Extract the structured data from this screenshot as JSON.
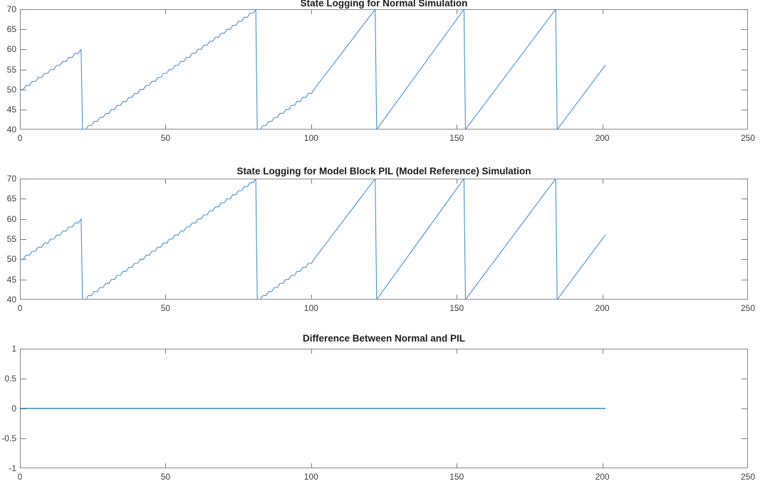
{
  "figure": {
    "background": "#ffffff",
    "axis_color": "#8a8a8a",
    "tick_color": "#7c7c7c",
    "tick_label_color": "#3c3c3c",
    "title_color": "#1c1c1c"
  },
  "chart_data": [
    {
      "type": "line",
      "title": "State Logging for Normal Simulation",
      "xlabel": "",
      "ylabel": "",
      "xlim": [
        0,
        250
      ],
      "ylim": [
        40,
        70
      ],
      "xticks": [
        0,
        50,
        100,
        150,
        200,
        250
      ],
      "xtick_labels": [
        "0",
        "50",
        "100",
        "150",
        "200",
        "250"
      ],
      "yticks": [
        40,
        45,
        50,
        55,
        60,
        65,
        70
      ],
      "ytick_labels": [
        "40",
        "45",
        "50",
        "55",
        "60",
        "65",
        "70"
      ],
      "grid": false,
      "legend": null,
      "box": true,
      "line_color": "#4a90d0",
      "line_width": 1.1,
      "series": [
        {
          "name": "state",
          "description": "sawtooth counter: stepped rise (+1 every ~2 s) early, smooth slope-1 rise later, wrapping from peak down to 40",
          "segments": [
            {
              "mode": "stepped",
              "from": [
                0,
                50
              ],
              "to": [
                21,
                60
              ]
            },
            {
              "mode": "linear",
              "from": [
                21,
                60
              ],
              "to": [
                21.5,
                40
              ]
            },
            {
              "mode": "stepped",
              "from": [
                21.5,
                40
              ],
              "to": [
                81,
                70
              ]
            },
            {
              "mode": "linear",
              "from": [
                81,
                70
              ],
              "to": [
                81.5,
                40
              ]
            },
            {
              "mode": "stepped",
              "from": [
                81.5,
                40
              ],
              "to": [
                101,
                50
              ]
            },
            {
              "mode": "linear",
              "from": [
                101,
                50
              ],
              "to": [
                122,
                70
              ]
            },
            {
              "mode": "linear",
              "from": [
                122,
                70
              ],
              "to": [
                122.5,
                40
              ]
            },
            {
              "mode": "linear",
              "from": [
                122.5,
                40
              ],
              "to": [
                152.5,
                70
              ]
            },
            {
              "mode": "linear",
              "from": [
                152.5,
                70
              ],
              "to": [
                153,
                40
              ]
            },
            {
              "mode": "linear",
              "from": [
                153,
                40
              ],
              "to": [
                184,
                70
              ]
            },
            {
              "mode": "linear",
              "from": [
                184,
                70
              ],
              "to": [
                184.5,
                40
              ]
            },
            {
              "mode": "linear",
              "from": [
                184.5,
                40
              ],
              "to": [
                201,
                56
              ]
            }
          ]
        }
      ]
    },
    {
      "type": "line",
      "title": "State Logging for Model Block PIL (Model Reference) Simulation",
      "xlabel": "",
      "ylabel": "",
      "xlim": [
        0,
        250
      ],
      "ylim": [
        40,
        70
      ],
      "xticks": [
        0,
        50,
        100,
        150,
        200,
        250
      ],
      "xtick_labels": [
        "0",
        "50",
        "100",
        "150",
        "200",
        "250"
      ],
      "yticks": [
        40,
        45,
        50,
        55,
        60,
        65,
        70
      ],
      "ytick_labels": [
        "40",
        "45",
        "50",
        "55",
        "60",
        "65",
        "70"
      ],
      "grid": false,
      "legend": null,
      "box": true,
      "line_color": "#4a90d0",
      "line_width": 1.1,
      "series": [
        {
          "name": "state",
          "description": "identical sawtooth counter trace as the Normal simulation",
          "segments": [
            {
              "mode": "stepped",
              "from": [
                0,
                50
              ],
              "to": [
                21,
                60
              ]
            },
            {
              "mode": "linear",
              "from": [
                21,
                60
              ],
              "to": [
                21.5,
                40
              ]
            },
            {
              "mode": "stepped",
              "from": [
                21.5,
                40
              ],
              "to": [
                81,
                70
              ]
            },
            {
              "mode": "linear",
              "from": [
                81,
                70
              ],
              "to": [
                81.5,
                40
              ]
            },
            {
              "mode": "stepped",
              "from": [
                81.5,
                40
              ],
              "to": [
                101,
                50
              ]
            },
            {
              "mode": "linear",
              "from": [
                101,
                50
              ],
              "to": [
                122,
                70
              ]
            },
            {
              "mode": "linear",
              "from": [
                122,
                70
              ],
              "to": [
                122.5,
                40
              ]
            },
            {
              "mode": "linear",
              "from": [
                122.5,
                40
              ],
              "to": [
                152.5,
                70
              ]
            },
            {
              "mode": "linear",
              "from": [
                152.5,
                70
              ],
              "to": [
                153,
                40
              ]
            },
            {
              "mode": "linear",
              "from": [
                153,
                40
              ],
              "to": [
                184,
                70
              ]
            },
            {
              "mode": "linear",
              "from": [
                184,
                70
              ],
              "to": [
                184.5,
                40
              ]
            },
            {
              "mode": "linear",
              "from": [
                184.5,
                40
              ],
              "to": [
                201,
                56
              ]
            }
          ]
        }
      ]
    },
    {
      "type": "line",
      "title": "Difference Between Normal and PIL",
      "xlabel": "",
      "ylabel": "",
      "xlim": [
        0,
        250
      ],
      "ylim": [
        -1,
        1
      ],
      "xticks": [
        0,
        50,
        100,
        150,
        200,
        250
      ],
      "xtick_labels": [
        "0",
        "50",
        "100",
        "150",
        "200",
        "250"
      ],
      "yticks": [
        -1,
        -0.5,
        0,
        0.5,
        1
      ],
      "ytick_labels": [
        "-1",
        "-0.5",
        "0",
        "0.5",
        "1"
      ],
      "grid": false,
      "legend": null,
      "box": true,
      "line_color": "#0d70b6",
      "line_width": 1.3,
      "series": [
        {
          "name": "difference",
          "description": "zero difference for the entire run",
          "segments": [
            {
              "mode": "linear",
              "from": [
                0,
                0
              ],
              "to": [
                201,
                0
              ]
            }
          ]
        }
      ]
    }
  ]
}
